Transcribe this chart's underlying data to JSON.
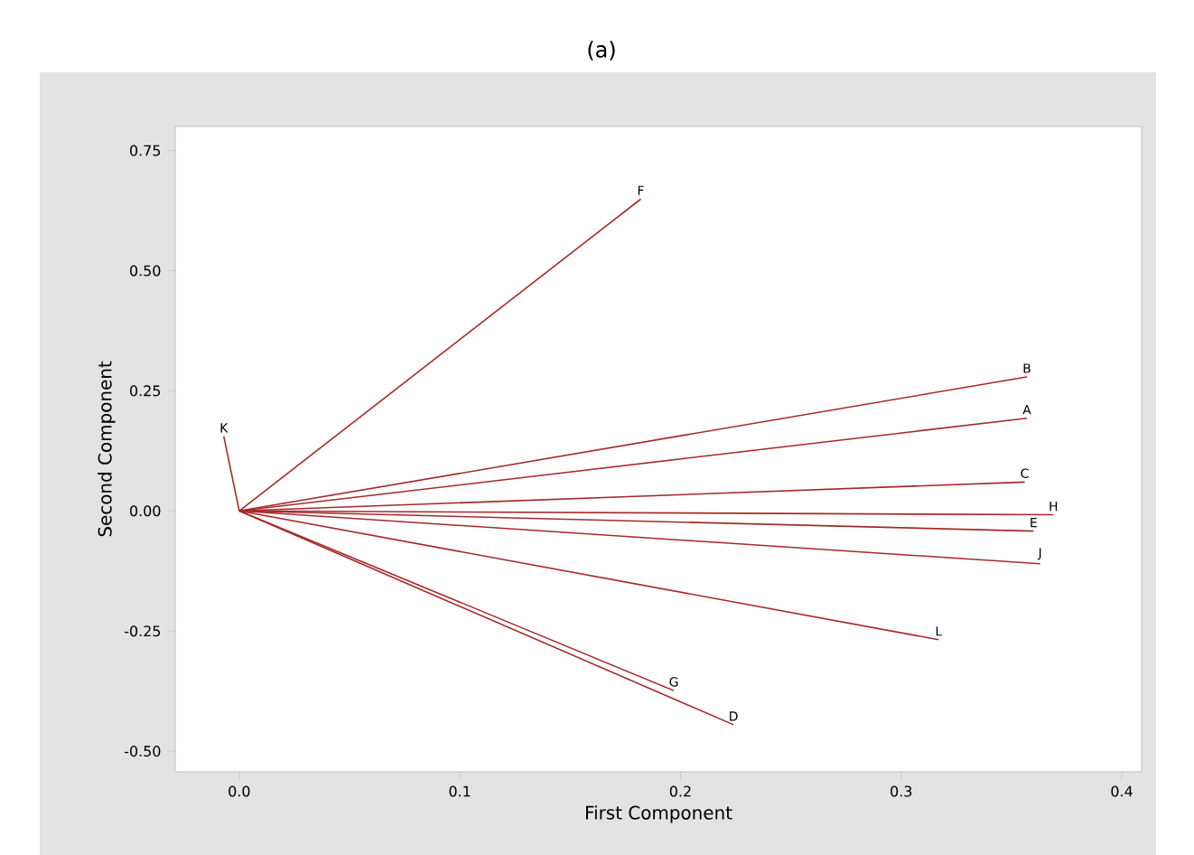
{
  "chart_data": {
    "type": "line",
    "title": "(a)",
    "xlabel": "First Component",
    "ylabel": "Second Component",
    "marker": "none",
    "line_style": "solid",
    "grid": false,
    "legend": false,
    "xlim": [
      -0.029,
      0.409
    ],
    "ylim": [
      -0.543,
      0.8
    ],
    "xticks": [
      {
        "value": 0,
        "label": "0.0"
      },
      0.1,
      0.2,
      0.3,
      0.4
    ],
    "yticks": [
      {
        "value": -0.5,
        "label": "-0.50"
      },
      -0.25,
      {
        "value": 0,
        "label": "0.00"
      },
      0.25,
      {
        "value": 0.5,
        "label": "0.50"
      },
      0.75
    ],
    "series": [
      {
        "name": "A",
        "color": "#a52a2a",
        "x": [
          0,
          0.357
        ],
        "values": [
          0,
          0.193
        ]
      },
      {
        "name": "B",
        "color": "#a52a2a",
        "x": [
          0,
          0.357
        ],
        "values": [
          0,
          0.279
        ]
      },
      {
        "name": "C",
        "color": "#a52a2a",
        "x": [
          0,
          0.356
        ],
        "values": [
          0,
          0.06
        ]
      },
      {
        "name": "D",
        "color": "#a52a2a",
        "x": [
          0,
          0.224
        ],
        "values": [
          0,
          -0.445
        ]
      },
      {
        "name": "E",
        "color": "#a52a2a",
        "x": [
          0,
          0.36
        ],
        "values": [
          0,
          -0.042
        ]
      },
      {
        "name": "F",
        "color": "#a52a2a",
        "x": [
          0,
          0.182
        ],
        "values": [
          0,
          0.649
        ]
      },
      {
        "name": "G",
        "color": "#a52a2a",
        "x": [
          0,
          0.197
        ],
        "values": [
          0,
          -0.374
        ]
      },
      {
        "name": "H",
        "color": "#a52a2a",
        "x": [
          0,
          0.369
        ],
        "values": [
          0,
          -0.008
        ]
      },
      {
        "name": "J",
        "color": "#a52a2a",
        "x": [
          0,
          0.363
        ],
        "values": [
          0,
          -0.11
        ]
      },
      {
        "name": "K",
        "color": "#a52a2a",
        "x": [
          0,
          -0.007
        ],
        "values": [
          0,
          0.155
        ]
      },
      {
        "name": "L",
        "color": "#a52a2a",
        "x": [
          0,
          0.317
        ],
        "values": [
          0,
          -0.268
        ]
      }
    ]
  }
}
